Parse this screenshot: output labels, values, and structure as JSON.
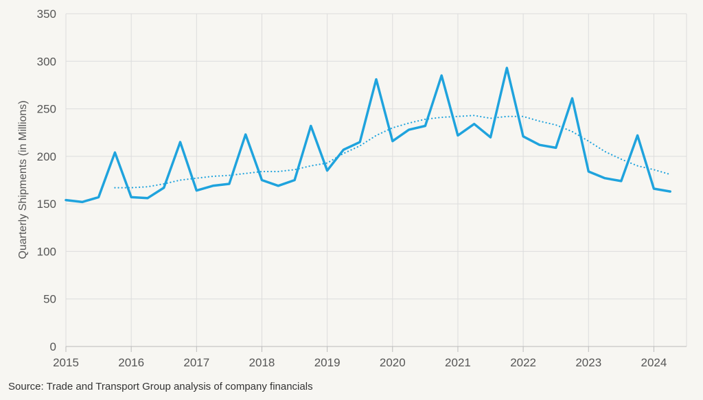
{
  "chart_data": {
    "type": "line",
    "ylabel": "Quarterly Shipments (in Millions)",
    "ylim": [
      0,
      350
    ],
    "yticks": [
      0,
      50,
      100,
      150,
      200,
      250,
      300,
      350
    ],
    "xlim": [
      2015,
      2024.5
    ],
    "xticks": [
      2015,
      2016,
      2017,
      2018,
      2019,
      2020,
      2021,
      2022,
      2023,
      2024
    ],
    "grid": true,
    "series": [
      {
        "style": "solid",
        "color": "#1fa3dd",
        "points": [
          [
            2015.0,
            154
          ],
          [
            2015.25,
            152
          ],
          [
            2015.5,
            157
          ],
          [
            2015.75,
            204
          ],
          [
            2016.0,
            157
          ],
          [
            2016.25,
            156
          ],
          [
            2016.5,
            167
          ],
          [
            2016.75,
            215
          ],
          [
            2017.0,
            164
          ],
          [
            2017.25,
            169
          ],
          [
            2017.5,
            171
          ],
          [
            2017.75,
            223
          ],
          [
            2018.0,
            175
          ],
          [
            2018.25,
            169
          ],
          [
            2018.5,
            175
          ],
          [
            2018.75,
            232
          ],
          [
            2019.0,
            185
          ],
          [
            2019.25,
            207
          ],
          [
            2019.5,
            215
          ],
          [
            2019.75,
            281
          ],
          [
            2020.0,
            216
          ],
          [
            2020.25,
            228
          ],
          [
            2020.5,
            232
          ],
          [
            2020.75,
            285
          ],
          [
            2021.0,
            222
          ],
          [
            2021.25,
            234
          ],
          [
            2021.5,
            220
          ],
          [
            2021.75,
            293
          ],
          [
            2022.0,
            221
          ],
          [
            2022.25,
            212
          ],
          [
            2022.5,
            209
          ],
          [
            2022.75,
            261
          ],
          [
            2023.0,
            184
          ],
          [
            2023.25,
            177
          ],
          [
            2023.5,
            174
          ],
          [
            2023.75,
            222
          ],
          [
            2024.0,
            166
          ],
          [
            2024.25,
            163
          ]
        ]
      },
      {
        "style": "dotted",
        "color": "#1fa3dd",
        "points": [
          [
            2015.75,
            167
          ],
          [
            2016.0,
            167
          ],
          [
            2016.25,
            168
          ],
          [
            2016.5,
            171
          ],
          [
            2016.75,
            175
          ],
          [
            2017.0,
            177
          ],
          [
            2017.25,
            179
          ],
          [
            2017.5,
            180
          ],
          [
            2017.75,
            182
          ],
          [
            2018.0,
            184
          ],
          [
            2018.25,
            184
          ],
          [
            2018.5,
            186
          ],
          [
            2018.75,
            190
          ],
          [
            2019.0,
            193
          ],
          [
            2019.25,
            203
          ],
          [
            2019.5,
            211
          ],
          [
            2019.75,
            222
          ],
          [
            2020.0,
            230
          ],
          [
            2020.25,
            235
          ],
          [
            2020.5,
            239
          ],
          [
            2020.75,
            241
          ],
          [
            2021.0,
            242
          ],
          [
            2021.25,
            243
          ],
          [
            2021.5,
            240
          ],
          [
            2021.75,
            242
          ],
          [
            2022.0,
            242
          ],
          [
            2022.25,
            237
          ],
          [
            2022.5,
            233
          ],
          [
            2022.75,
            226
          ],
          [
            2023.0,
            216
          ],
          [
            2023.25,
            205
          ],
          [
            2023.5,
            197
          ],
          [
            2023.75,
            190
          ],
          [
            2024.0,
            186
          ],
          [
            2024.25,
            181
          ]
        ]
      }
    ]
  },
  "source": "Source: Trade and Transport Group analysis of company financials"
}
